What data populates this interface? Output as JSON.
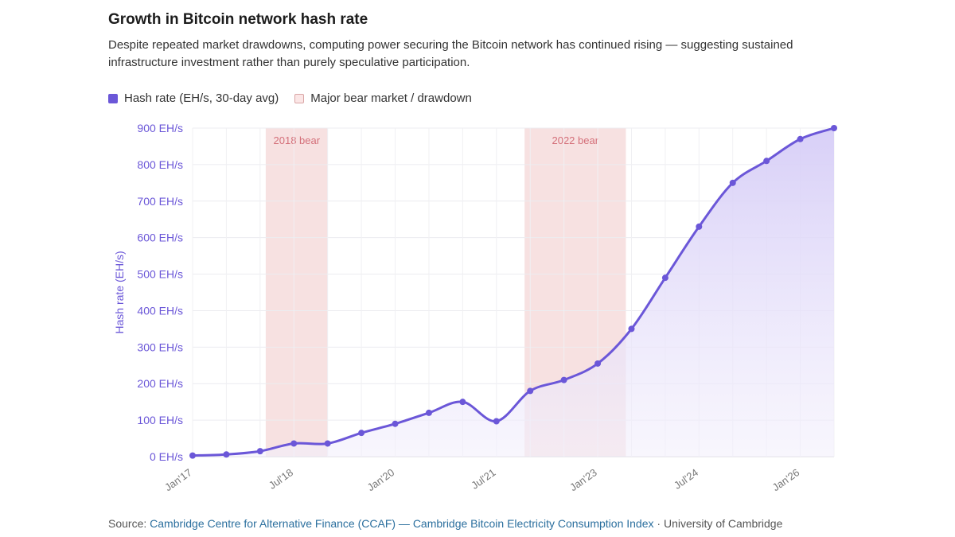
{
  "title": "Growth in Bitcoin network hash rate",
  "subtitle": "Despite repeated market drawdowns, computing power securing the Bitcoin network has continued rising — suggesting sustained infrastructure investment rather than purely speculative participation.",
  "legend": {
    "series_label": "Hash rate (EH/s, 30-day avg)",
    "band_label": "Major bear market / drawdown"
  },
  "source": {
    "prefix": "Source: ",
    "link": "Cambridge Centre for Alternative Finance (CCAF) — Cambridge Bitcoin Electricity Consumption Index",
    "separator": " · ",
    "suffix": "University of Cambridge"
  },
  "colors": {
    "line": "#6b57d8",
    "area_top": "#d6cdf7",
    "area_bottom": "#f3f0fc",
    "band": "#f6dcdc",
    "band_text": "#d4707a",
    "axis_text": "#6b57d8"
  },
  "chart_data": {
    "type": "area",
    "ylabel": "Hash rate (EH/s)",
    "ylim": [
      0,
      900
    ],
    "y_ticks": [
      {
        "value": 0,
        "label": "0 EH/s"
      },
      {
        "value": 100,
        "label": "100 EH/s"
      },
      {
        "value": 200,
        "label": "200 EH/s"
      },
      {
        "value": 300,
        "label": "300 EH/s"
      },
      {
        "value": 400,
        "label": "400 EH/s"
      },
      {
        "value": 500,
        "label": "500 EH/s"
      },
      {
        "value": 600,
        "label": "600 EH/s"
      },
      {
        "value": 700,
        "label": "700 EH/s"
      },
      {
        "value": 800,
        "label": "800 EH/s"
      },
      {
        "value": 900,
        "label": "900 EH/s"
      }
    ],
    "xlim": [
      "2017-01",
      "2026-07"
    ],
    "x_ticks": [
      {
        "date": "2017-01",
        "label": "Jan'17"
      },
      {
        "date": "2018-07",
        "label": "Jul'18"
      },
      {
        "date": "2020-01",
        "label": "Jan'20"
      },
      {
        "date": "2021-07",
        "label": "Jul'21"
      },
      {
        "date": "2023-01",
        "label": "Jan'23"
      },
      {
        "date": "2024-07",
        "label": "Jul'24"
      },
      {
        "date": "2026-01",
        "label": "Jan'26"
      }
    ],
    "grid": true,
    "legend_position": "top-left",
    "bands": [
      {
        "start": "2018-02",
        "end": "2019-01",
        "label": "2018 bear"
      },
      {
        "start": "2021-12",
        "end": "2023-06",
        "label": "2022 bear"
      }
    ],
    "series": [
      {
        "name": "Hash rate (EH/s, 30-day avg)",
        "points": [
          {
            "date": "2017-01",
            "value": 3
          },
          {
            "date": "2017-07",
            "value": 6
          },
          {
            "date": "2018-01",
            "value": 15
          },
          {
            "date": "2018-07",
            "value": 36
          },
          {
            "date": "2019-01",
            "value": 36
          },
          {
            "date": "2019-07",
            "value": 65
          },
          {
            "date": "2020-01",
            "value": 90
          },
          {
            "date": "2020-07",
            "value": 120
          },
          {
            "date": "2021-01",
            "value": 150
          },
          {
            "date": "2021-07",
            "value": 97
          },
          {
            "date": "2022-01",
            "value": 180
          },
          {
            "date": "2022-07",
            "value": 210
          },
          {
            "date": "2023-01",
            "value": 255
          },
          {
            "date": "2023-07",
            "value": 350
          },
          {
            "date": "2024-01",
            "value": 490
          },
          {
            "date": "2024-07",
            "value": 630
          },
          {
            "date": "2025-01",
            "value": 750
          },
          {
            "date": "2025-07",
            "value": 810
          },
          {
            "date": "2026-01",
            "value": 870
          },
          {
            "date": "2026-07",
            "value": 900
          }
        ]
      }
    ]
  }
}
